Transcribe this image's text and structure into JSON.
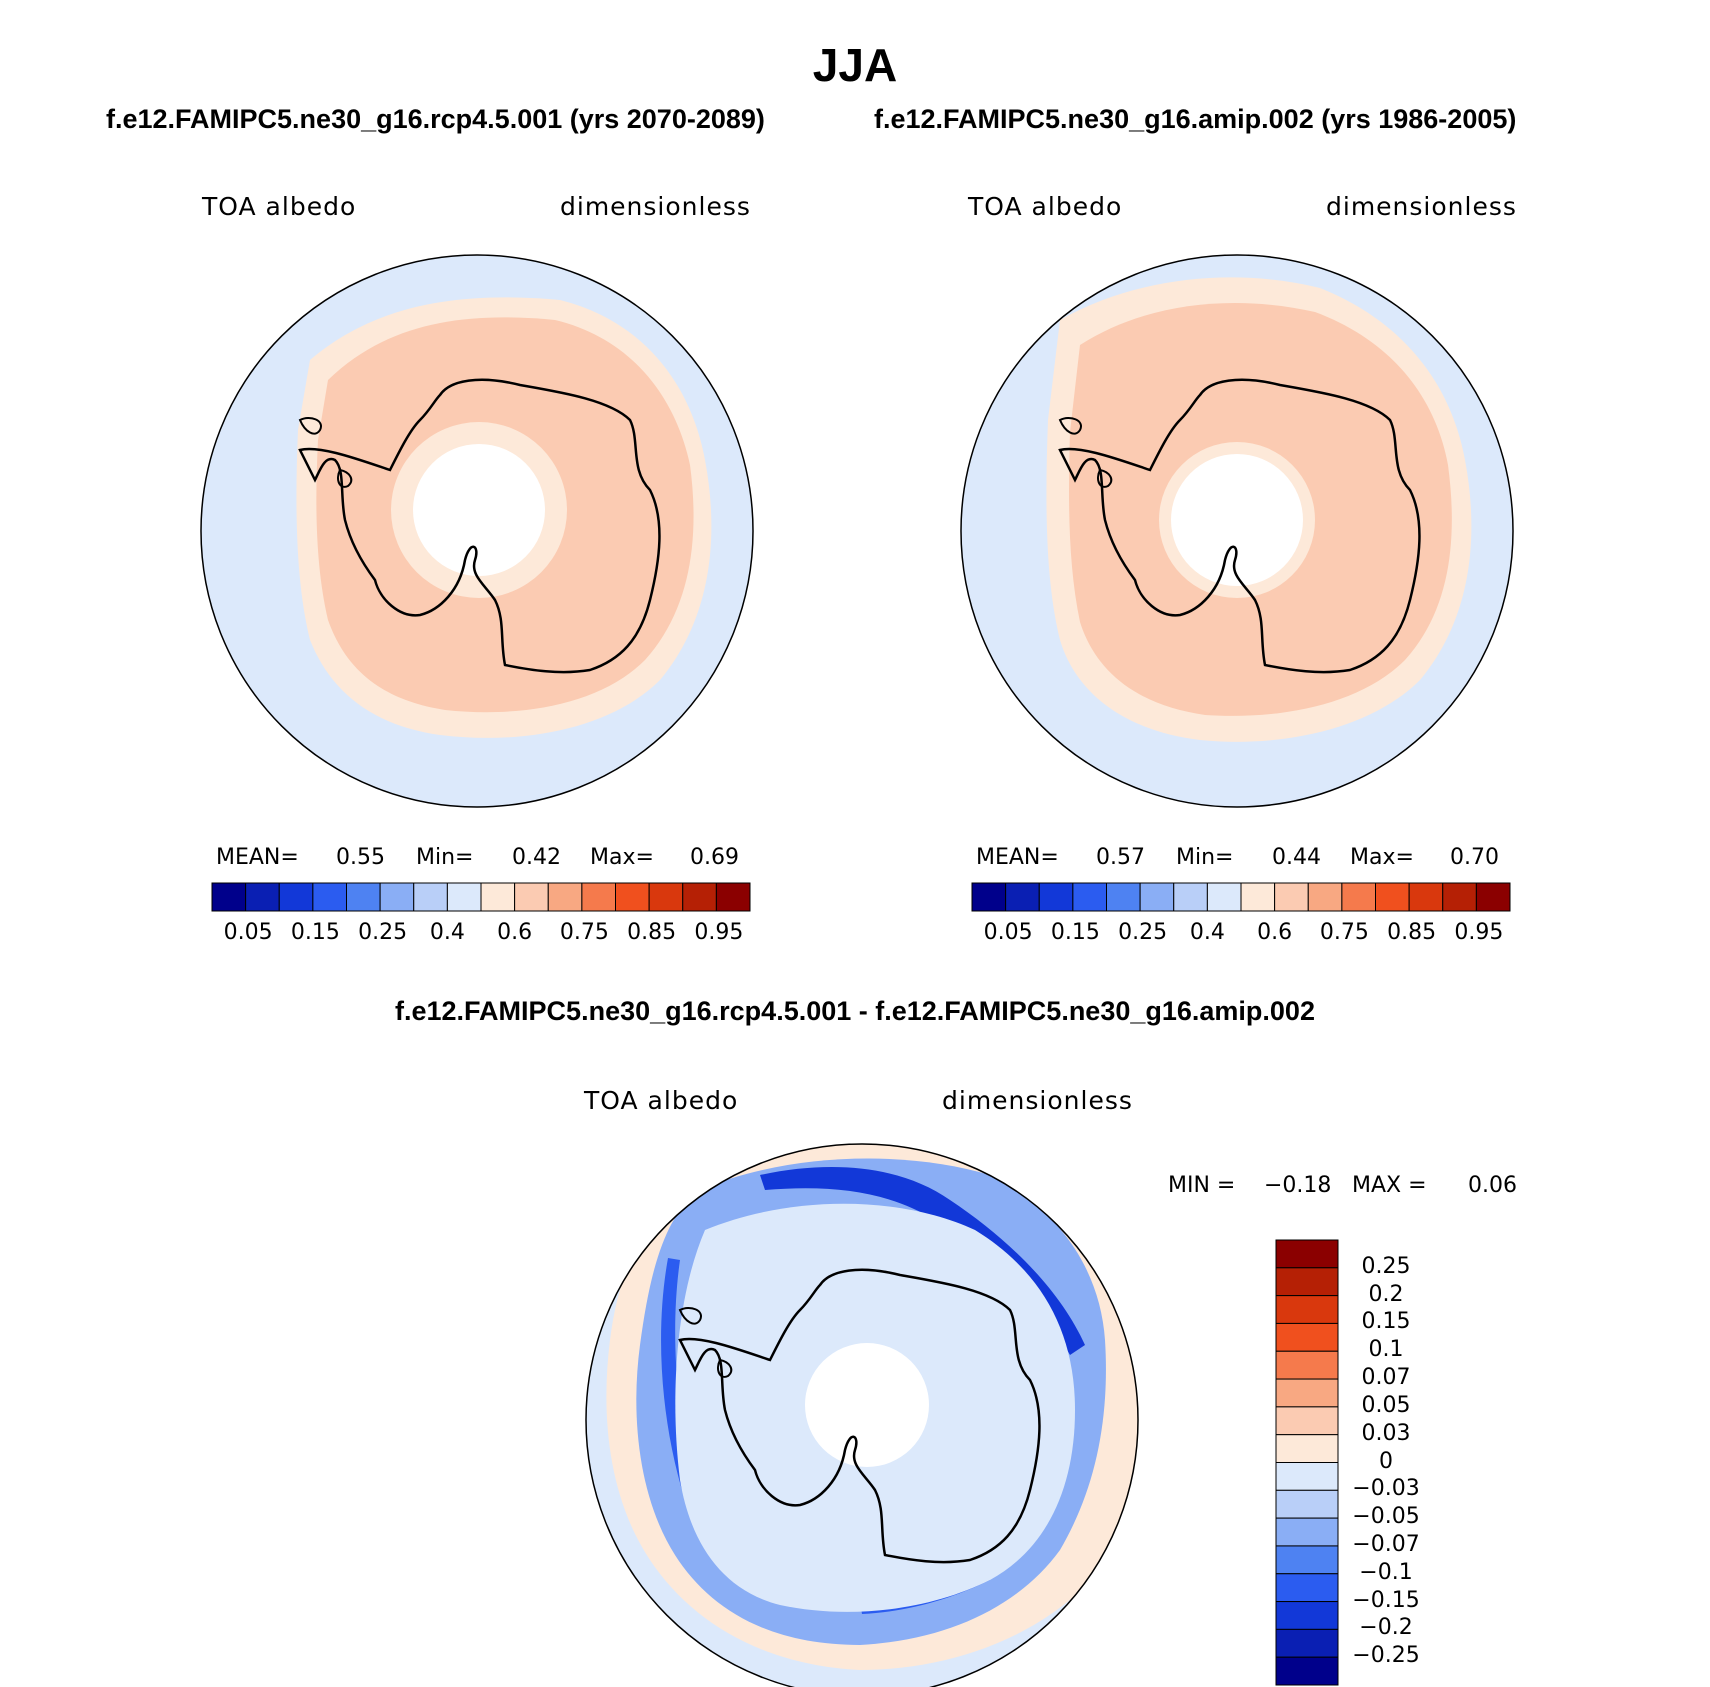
{
  "title": "JJA",
  "panels": [
    {
      "case_title": "f.e12.FAMIPC5.ne30_g16.rcp4.5.001 (yrs 2070-2089)",
      "variable": "TOA albedo",
      "units": "dimensionless",
      "stats": {
        "mean_label": "MEAN=",
        "mean": "0.55",
        "min_label": "Min=",
        "min": "0.42",
        "max_label": "Max=",
        "max": "0.69"
      },
      "colorbar_ticks": [
        "0.05",
        "0.15",
        "0.25",
        "0.4",
        "0.6",
        "0.75",
        "0.85",
        "0.95"
      ]
    },
    {
      "case_title": "f.e12.FAMIPC5.ne30_g16.amip.002 (yrs 1986-2005)",
      "variable": "TOA albedo",
      "units": "dimensionless",
      "stats": {
        "mean_label": "MEAN=",
        "mean": "0.57",
        "min_label": "Min=",
        "min": "0.44",
        "max_label": "Max=",
        "max": "0.70"
      },
      "colorbar_ticks": [
        "0.05",
        "0.15",
        "0.25",
        "0.4",
        "0.6",
        "0.75",
        "0.85",
        "0.95"
      ]
    }
  ],
  "difference": {
    "title": "f.e12.FAMIPC5.ne30_g16.rcp4.5.001 - f.e12.FAMIPC5.ne30_g16.amip.002",
    "variable": "TOA albedo",
    "units": "dimensionless",
    "minmax": {
      "min_label": "MIN =",
      "min": "−0.18",
      "max_label": "MAX =",
      "max": "0.06"
    },
    "colorbar_ticks": [
      "0.25",
      "0.2",
      "0.15",
      "0.1",
      "0.07",
      "0.05",
      "0.03",
      "0",
      "−0.03",
      "−0.05",
      "−0.07",
      "−0.1",
      "−0.15",
      "−0.2",
      "−0.25"
    ]
  },
  "colors": {
    "abs_palette": [
      "#00008b",
      "#0a1fb3",
      "#1238d8",
      "#2b5cf0",
      "#4e82f2",
      "#8aaef5",
      "#b9cff8",
      "#dce9fb",
      "#fde9d9",
      "#fbcbb2",
      "#f8a882",
      "#f57a4c",
      "#f0501e",
      "#d9380d",
      "#b52005",
      "#8b0000"
    ],
    "diff_palette": [
      "#00008b",
      "#0a1fb3",
      "#1238d8",
      "#2b5cf0",
      "#4e82f2",
      "#8aaef5",
      "#b9cff8",
      "#dce9fb",
      "#fde9d9",
      "#fbcbb2",
      "#f8a882",
      "#f57a4c",
      "#f0501e",
      "#d9380d",
      "#b52005",
      "#8b0000"
    ],
    "ocean_low": "#dce9fb",
    "ring_light": "#fde9d9",
    "ring_mid": "#fbcbb2",
    "coast": "#000000"
  }
}
